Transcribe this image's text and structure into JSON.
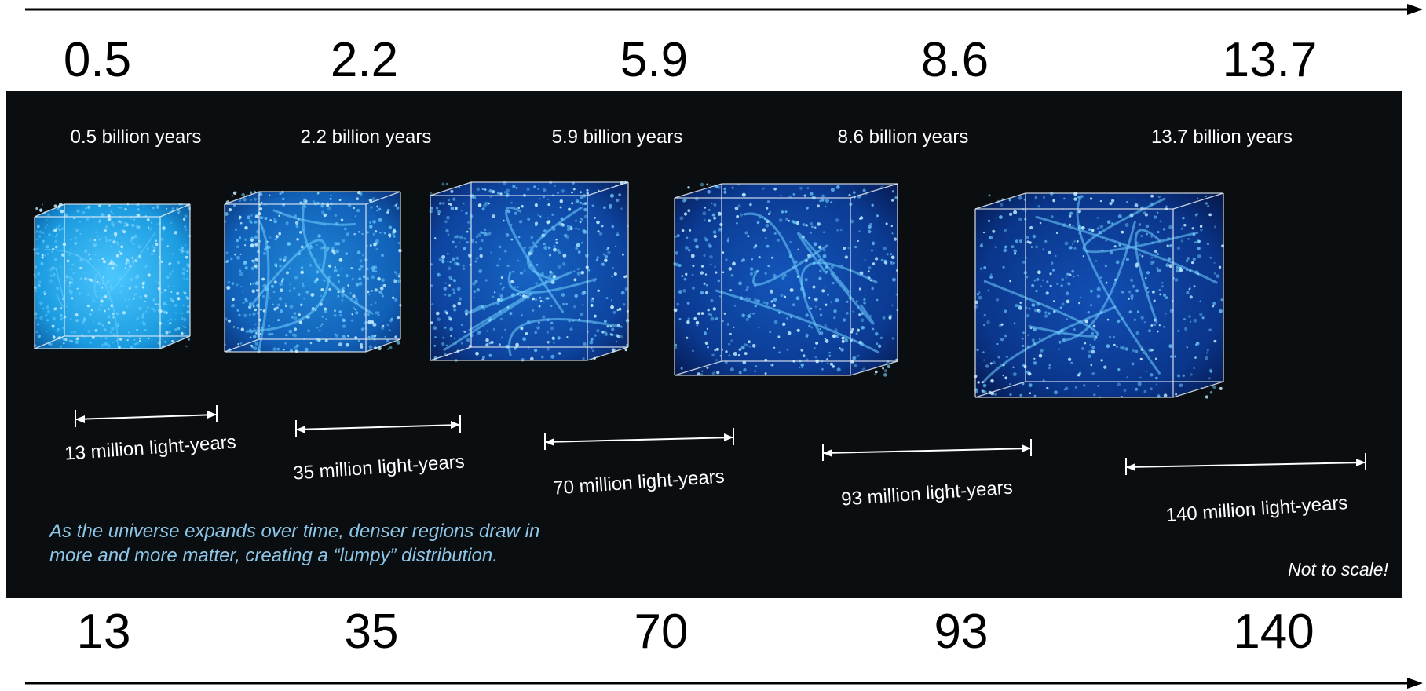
{
  "top_scale": {
    "values": [
      "0.5",
      "2.2",
      "5.9",
      "8.6",
      "13.7"
    ]
  },
  "bottom_scale": {
    "values": [
      "13",
      "35",
      "70",
      "93",
      "140"
    ]
  },
  "panel": {
    "cubes": [
      {
        "time_label": "0.5 billion years",
        "size_label": "13 million light-years"
      },
      {
        "time_label": "2.2 billion years",
        "size_label": "35 million light-years"
      },
      {
        "time_label": "5.9 billion years",
        "size_label": "70 million light-years"
      },
      {
        "time_label": "8.6 billion years",
        "size_label": "93 million light-years"
      },
      {
        "time_label": "13.7 billion years",
        "size_label": "140 million light-years"
      }
    ],
    "caption_line1": "As the universe expands over time, denser regions draw in",
    "caption_line2": "more and more matter, creating a “lumpy” distribution.",
    "note": "Not to scale!"
  },
  "colors": {
    "panel_background": "#0b0e10",
    "caption": "#8ec6e8",
    "cube_fill_early": "#1fa6e8",
    "cube_fill_late": "#0b2f8a",
    "filament": "#6fd0ff"
  }
}
